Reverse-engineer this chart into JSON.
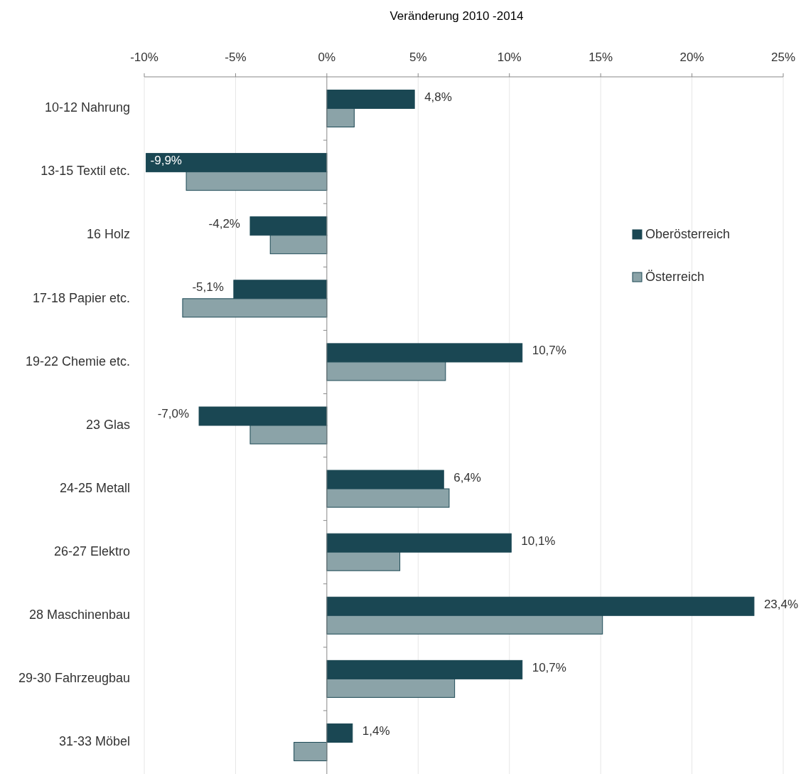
{
  "chart_data": {
    "type": "bar",
    "orientation": "horizontal",
    "title": "Veränderung 2010 -2014",
    "categories": [
      "10-12  Nahrung",
      "13-15  Textil etc.",
      "16  Holz",
      "17-18  Papier etc.",
      "19-22 Chemie etc.",
      "23  Glas",
      "24-25  Metall",
      "26-27 Elektro",
      "28  Maschinenbau",
      "29-30  Fahrzeugbau",
      "31-33  Möbel"
    ],
    "series": [
      {
        "name": "Oberösterreich",
        "color": "#1a4753",
        "values": [
          4.8,
          -9.9,
          -4.2,
          -5.1,
          10.7,
          -7.0,
          6.4,
          10.1,
          23.4,
          10.7,
          1.4
        ],
        "value_labels": [
          "4,8%",
          "-9,9%",
          "-4,2%",
          "-5,1%",
          "10,7%",
          "-7,0%",
          "6,4%",
          "10,1%",
          "23,4%",
          "10,7%",
          "1,4%"
        ]
      },
      {
        "name": "Österreich",
        "color": "#8ba3a8",
        "values": [
          1.5,
          -7.7,
          -3.1,
          -7.9,
          6.5,
          -4.2,
          6.7,
          4.0,
          15.1,
          7.0,
          -1.8
        ]
      }
    ],
    "xlim": [
      -10,
      25
    ],
    "xticks": [
      {
        "value": -10,
        "label": "-10%"
      },
      {
        "value": -5,
        "label": "-5%"
      },
      {
        "value": 0,
        "label": "0%"
      },
      {
        "value": 5,
        "label": "5%"
      },
      {
        "value": 10,
        "label": "10%"
      },
      {
        "value": 15,
        "label": "15%"
      },
      {
        "value": 20,
        "label": "20%"
      },
      {
        "value": 25,
        "label": "25%"
      }
    ],
    "grid": "x",
    "legend": "right"
  }
}
